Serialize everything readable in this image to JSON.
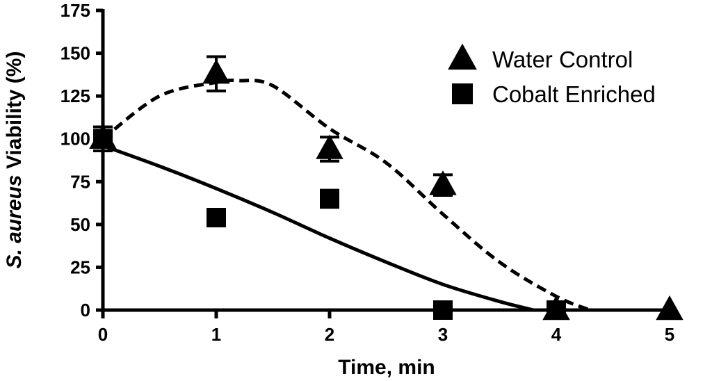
{
  "chart_data": {
    "type": "scatter",
    "title": "",
    "xlabel": "Time, min",
    "ylabel": {
      "italic": "S. aureus",
      "rest": " Viability (%)"
    },
    "xlim": [
      0,
      5
    ],
    "ylim": [
      0,
      175
    ],
    "x_ticks": [
      "0",
      "1",
      "2",
      "3",
      "4",
      "5"
    ],
    "y_ticks": [
      "0",
      "25",
      "50",
      "75",
      "100",
      "125",
      "150",
      "175"
    ],
    "grid": false,
    "legend_position": "top-right",
    "series": [
      {
        "name": "Water Control",
        "marker": "triangle",
        "points": [
          {
            "x": 0,
            "y": 100,
            "err": 5
          },
          {
            "x": 1,
            "y": 138,
            "err": 10
          },
          {
            "x": 2,
            "y": 94,
            "err": 7
          },
          {
            "x": 3,
            "y": 73,
            "err": 6
          },
          {
            "x": 4,
            "y": 0,
            "err": 0
          },
          {
            "x": 5,
            "y": 0,
            "err": 0
          }
        ],
        "fit_line": {
          "style": "dashed",
          "x": [
            0,
            0.5,
            1,
            1.2,
            1.5,
            2,
            2.5,
            3,
            3.5,
            4,
            4.3
          ],
          "y": [
            100,
            125,
            133,
            134,
            131,
            106,
            86,
            56,
            28,
            8,
            0
          ]
        }
      },
      {
        "name": "Cobalt Enriched",
        "marker": "square",
        "points": [
          {
            "x": 0,
            "y": 100,
            "err": 7
          },
          {
            "x": 1,
            "y": 54,
            "err": 0
          },
          {
            "x": 2,
            "y": 65,
            "err": 5
          },
          {
            "x": 3,
            "y": 0,
            "err": 0
          },
          {
            "x": 4,
            "y": 0,
            "err": 0
          }
        ],
        "fit_line": {
          "style": "solid",
          "x": [
            0,
            0.5,
            1,
            1.5,
            2,
            2.5,
            3,
            3.5,
            3.8
          ],
          "y": [
            96,
            84,
            71,
            57,
            42,
            28,
            15,
            5,
            0
          ]
        }
      }
    ]
  }
}
